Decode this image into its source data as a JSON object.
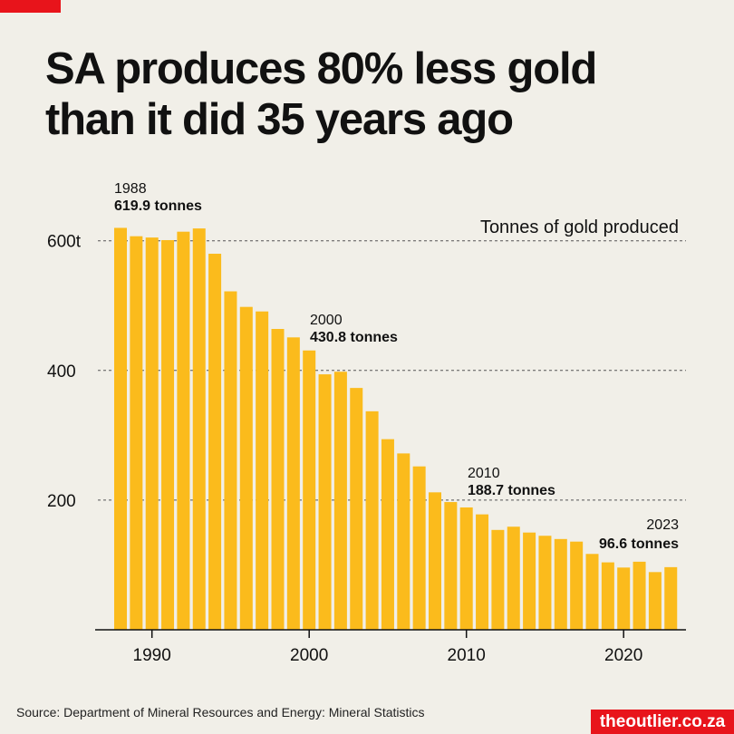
{
  "title_line1": "SA produces 80% less gold",
  "title_line2": "than it did 35 years ago",
  "source": "Source: Department of Mineral Resources and Energy: Mineral Statistics",
  "brand": "theoutlier.co.za",
  "colors": {
    "bar": "#fbbb1c",
    "accent": "#e8141b",
    "background": "#f1efe8",
    "text": "#111111"
  },
  "chart_data": {
    "type": "bar",
    "title": "SA produces 80% less gold than it did 35 years ago",
    "series_label": "Tonnes of gold produced",
    "xlabel": "",
    "ylabel": "",
    "categories": [
      1988,
      1989,
      1990,
      1991,
      1992,
      1993,
      1994,
      1995,
      1996,
      1997,
      1998,
      1999,
      2000,
      2001,
      2002,
      2003,
      2004,
      2005,
      2006,
      2007,
      2008,
      2009,
      2010,
      2011,
      2012,
      2013,
      2014,
      2015,
      2016,
      2017,
      2018,
      2019,
      2020,
      2021,
      2022,
      2023
    ],
    "values": [
      619.9,
      607,
      605,
      601,
      614,
      619,
      580,
      522,
      498,
      491,
      464,
      451,
      430.8,
      394,
      398,
      373,
      337,
      294,
      272,
      252,
      212,
      197,
      188.7,
      178,
      154,
      159,
      150,
      145,
      140,
      136,
      117,
      104,
      96,
      105,
      89,
      96.6
    ],
    "ylim": [
      0,
      620
    ],
    "yticks": [
      {
        "value": 600,
        "label": "600t"
      },
      {
        "value": 400,
        "label": "400"
      },
      {
        "value": 200,
        "label": "200"
      }
    ],
    "xticks": [
      {
        "value": 1990,
        "label": "1990"
      },
      {
        "value": 2000,
        "label": "2000"
      },
      {
        "value": 2010,
        "label": "2010"
      },
      {
        "value": 2020,
        "label": "2020"
      }
    ],
    "grid": "horizontal dashed",
    "annotations": [
      {
        "year": 1988,
        "label": "1988",
        "value_label": "619.9 tonnes",
        "align": "start"
      },
      {
        "year": 2000,
        "label": "2000",
        "value_label": "430.8 tonnes",
        "align": "start"
      },
      {
        "year": 2010,
        "label": "2010",
        "value_label": "188.7 tonnes",
        "align": "start"
      },
      {
        "year": 2023,
        "label": "2023",
        "value_label": "96.6 tonnes",
        "align": "end"
      }
    ]
  }
}
